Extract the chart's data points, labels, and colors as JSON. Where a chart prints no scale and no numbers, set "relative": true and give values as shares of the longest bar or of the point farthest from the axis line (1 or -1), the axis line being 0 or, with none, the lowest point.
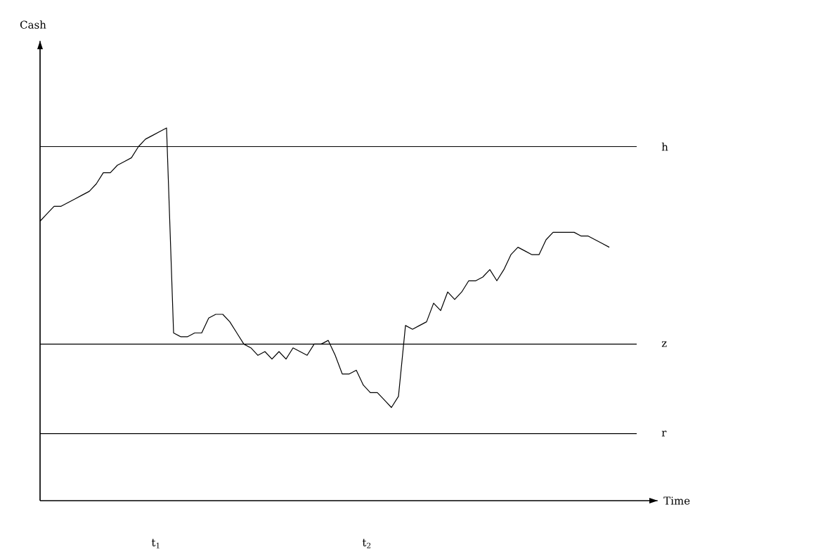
{
  "chart_data": {
    "type": "line",
    "relative": true,
    "xlabel": "Time",
    "color": "#000000",
    "marker": "none",
    "line_style": "solid",
    "categories": [
      null,
      null,
      null,
      null,
      null,
      null,
      null,
      null,
      null,
      null,
      null,
      null,
      null,
      null,
      null,
      null,
      null,
      null,
      null,
      null,
      null,
      null,
      null,
      null,
      null,
      null,
      null,
      null,
      null,
      null,
      null,
      null,
      null,
      null,
      null,
      null,
      null,
      null,
      null,
      null,
      null,
      null,
      null,
      null,
      null,
      null,
      null,
      null,
      null,
      null,
      null,
      null,
      null,
      null,
      null,
      null,
      null,
      null,
      null,
      null,
      null,
      null,
      null,
      null,
      null,
      null,
      null,
      null,
      null,
      null,
      null,
      null,
      null,
      null,
      null,
      null,
      null,
      null,
      null,
      null,
      null,
      null
    ],
    "values": [
      0.75,
      0.77,
      0.79,
      0.79,
      0.8,
      0.81,
      0.82,
      0.83,
      0.85,
      0.88,
      0.88,
      0.9,
      0.91,
      0.92,
      0.95,
      0.97,
      0.98,
      0.99,
      1.0,
      0.45,
      0.44,
      0.44,
      0.45,
      0.45,
      0.49,
      0.5,
      0.5,
      0.48,
      0.45,
      0.42,
      0.41,
      0.39,
      0.4,
      0.38,
      0.4,
      0.38,
      0.41,
      0.4,
      0.39,
      0.42,
      0.42,
      0.43,
      0.39,
      0.34,
      0.34,
      0.35,
      0.31,
      0.29,
      0.29,
      0.27,
      0.25,
      0.28,
      0.47,
      0.46,
      0.47,
      0.48,
      0.53,
      0.51,
      0.56,
      0.54,
      0.56,
      0.59,
      0.59,
      0.6,
      0.62,
      0.59,
      0.62,
      0.66,
      0.68,
      0.67,
      0.66,
      0.66,
      0.7,
      0.72,
      0.72,
      0.72,
      0.72,
      0.71,
      0.71,
      0.7,
      0.69,
      0.68
    ],
    "ref_lines": [
      {
        "axis": "y",
        "value": 0.95,
        "label": "h"
      },
      {
        "axis": "y",
        "value": 0.42,
        "label": "z"
      },
      {
        "axis": "y",
        "value": 0.18,
        "label": "r"
      }
    ],
    "annotations": [
      "Cash",
      "t$_{1}$",
      "t$_{2}$"
    ]
  }
}
